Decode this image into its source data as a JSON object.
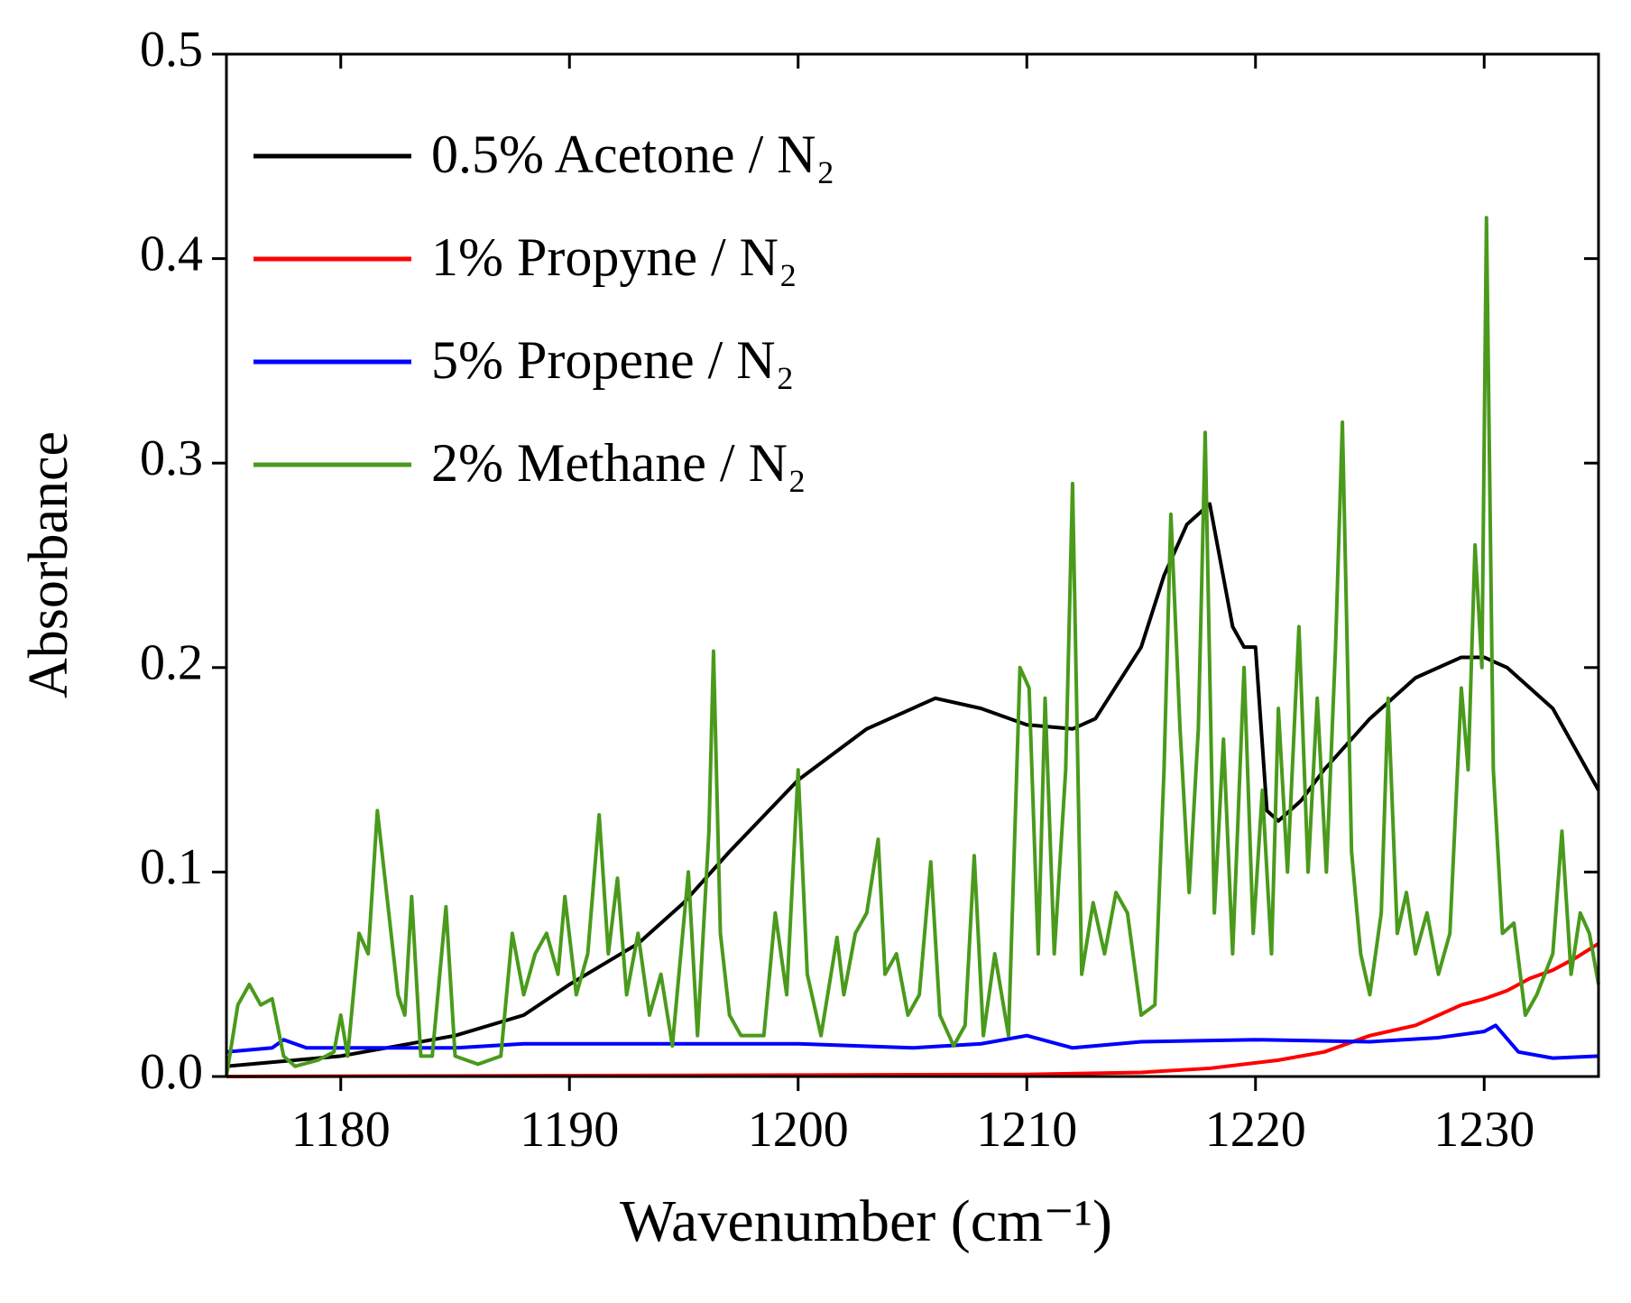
{
  "chart_data": {
    "type": "line",
    "xlabel": "Wavenumber (cm⁻¹)",
    "ylabel": "Absorbance",
    "xlim": [
      1175,
      1235
    ],
    "xticks": [
      1180,
      1190,
      1200,
      1210,
      1220,
      1230
    ],
    "ylim": [
      0,
      0.5
    ],
    "yticks": [
      {
        "value": 0,
        "label": "0.0"
      },
      {
        "value": 0.1,
        "label": "0.1"
      },
      {
        "value": 0.2,
        "label": "0.2"
      },
      {
        "value": 0.3,
        "label": "0.3"
      },
      {
        "value": 0.4,
        "label": "0.4"
      },
      {
        "value": 0.5,
        "label": "0.5"
      }
    ],
    "grid": false,
    "legend": "upper left",
    "series": [
      {
        "name": "0.5% Acetone / N₂",
        "color": "#000000",
        "x": [
          1175,
          1180,
          1185,
          1188,
          1190,
          1193,
          1195,
          1197,
          1200,
          1203,
          1206,
          1208,
          1210,
          1212,
          1213,
          1215,
          1216,
          1217,
          1218,
          1219,
          1219.5,
          1220,
          1220.5,
          1221,
          1222,
          1223,
          1225,
          1227,
          1229,
          1230,
          1231,
          1233,
          1235
        ],
        "values": [
          0.005,
          0.01,
          0.02,
          0.03,
          0.045,
          0.065,
          0.085,
          0.11,
          0.145,
          0.17,
          0.185,
          0.18,
          0.172,
          0.17,
          0.175,
          0.21,
          0.245,
          0.27,
          0.28,
          0.22,
          0.21,
          0.21,
          0.13,
          0.125,
          0.135,
          0.15,
          0.175,
          0.195,
          0.205,
          0.205,
          0.2,
          0.18,
          0.14
        ]
      },
      {
        "name": "1% Propyne / N₂",
        "color": "#ff0000",
        "x": [
          1175,
          1210,
          1215,
          1218,
          1221,
          1223,
          1225,
          1227,
          1228,
          1229,
          1230,
          1231,
          1232,
          1233,
          1234,
          1235
        ],
        "values": [
          0,
          0.001,
          0.002,
          0.004,
          0.008,
          0.012,
          0.02,
          0.025,
          0.03,
          0.035,
          0.038,
          0.042,
          0.048,
          0.052,
          0.058,
          0.065
        ]
      },
      {
        "name": "5% Propene / N₂",
        "color": "#0000ff",
        "x": [
          1175,
          1177,
          1177.5,
          1178.5,
          1185,
          1188,
          1200,
          1205,
          1208,
          1210,
          1212,
          1215,
          1220,
          1225,
          1228,
          1230,
          1230.5,
          1231.5,
          1233,
          1235
        ],
        "values": [
          0.012,
          0.014,
          0.018,
          0.014,
          0.014,
          0.016,
          0.016,
          0.014,
          0.016,
          0.02,
          0.014,
          0.017,
          0.018,
          0.017,
          0.019,
          0.022,
          0.025,
          0.012,
          0.009,
          0.01
        ]
      },
      {
        "name": "2% Methane / N₂",
        "color": "#4a9a1c",
        "x": [
          1175,
          1175.5,
          1176,
          1176.5,
          1177,
          1177.5,
          1178,
          1179,
          1179.7,
          1180,
          1180.3,
          1180.8,
          1181.2,
          1181.6,
          1182,
          1182.5,
          1182.8,
          1183.1,
          1183.5,
          1184,
          1184.6,
          1185,
          1186,
          1187,
          1187.5,
          1188,
          1188.5,
          1189,
          1189.5,
          1189.8,
          1190.3,
          1190.8,
          1191.3,
          1191.7,
          1192.1,
          1192.5,
          1193,
          1193.5,
          1194,
          1194.5,
          1195.2,
          1195.6,
          1196.1,
          1196.3,
          1196.6,
          1197,
          1197.5,
          1198.5,
          1199,
          1199.5,
          1200,
          1200.4,
          1201,
          1201.7,
          1202,
          1202.5,
          1203,
          1203.5,
          1203.8,
          1204.3,
          1204.8,
          1205.3,
          1205.8,
          1206.2,
          1206.8,
          1207.3,
          1207.7,
          1208.1,
          1208.6,
          1209.2,
          1209.7,
          1210.1,
          1210.5,
          1210.8,
          1211.2,
          1211.7,
          1212,
          1212.4,
          1212.9,
          1213.4,
          1213.9,
          1214.4,
          1215,
          1215.6,
          1216,
          1216.3,
          1216.7,
          1217.1,
          1217.5,
          1217.8,
          1218.2,
          1218.6,
          1219,
          1219.5,
          1219.9,
          1220.3,
          1220.7,
          1221,
          1221.4,
          1221.9,
          1222.3,
          1222.7,
          1223.1,
          1223.5,
          1223.8,
          1224.2,
          1224.6,
          1225,
          1225.5,
          1225.8,
          1226.2,
          1226.6,
          1227,
          1227.5,
          1228,
          1228.5,
          1229,
          1229.3,
          1229.6,
          1229.9,
          1230.1,
          1230.4,
          1230.8,
          1231.3,
          1231.8,
          1232.3,
          1233,
          1233.4,
          1233.8,
          1234.2,
          1234.6,
          1235
        ],
        "values": [
          0,
          0.035,
          0.045,
          0.035,
          0.038,
          0.01,
          0.005,
          0.008,
          0.012,
          0.03,
          0.01,
          0.07,
          0.06,
          0.13,
          0.09,
          0.04,
          0.03,
          0.088,
          0.01,
          0.01,
          0.083,
          0.01,
          0.006,
          0.01,
          0.07,
          0.04,
          0.06,
          0.07,
          0.05,
          0.088,
          0.04,
          0.06,
          0.128,
          0.06,
          0.097,
          0.04,
          0.07,
          0.03,
          0.05,
          0.015,
          0.1,
          0.02,
          0.12,
          0.208,
          0.07,
          0.03,
          0.02,
          0.02,
          0.08,
          0.04,
          0.15,
          0.05,
          0.02,
          0.068,
          0.04,
          0.07,
          0.08,
          0.116,
          0.05,
          0.06,
          0.03,
          0.04,
          0.105,
          0.03,
          0.015,
          0.025,
          0.108,
          0.02,
          0.06,
          0.02,
          0.2,
          0.19,
          0.06,
          0.185,
          0.06,
          0.15,
          0.29,
          0.05,
          0.085,
          0.06,
          0.09,
          0.08,
          0.03,
          0.035,
          0.15,
          0.275,
          0.17,
          0.09,
          0.17,
          0.315,
          0.08,
          0.165,
          0.06,
          0.2,
          0.07,
          0.14,
          0.06,
          0.18,
          0.1,
          0.22,
          0.1,
          0.185,
          0.1,
          0.21,
          0.32,
          0.11,
          0.06,
          0.04,
          0.08,
          0.185,
          0.07,
          0.09,
          0.06,
          0.08,
          0.05,
          0.07,
          0.19,
          0.15,
          0.26,
          0.2,
          0.42,
          0.15,
          0.07,
          0.075,
          0.03,
          0.04,
          0.06,
          0.12,
          0.05,
          0.08,
          0.07,
          0.045
        ]
      }
    ]
  }
}
